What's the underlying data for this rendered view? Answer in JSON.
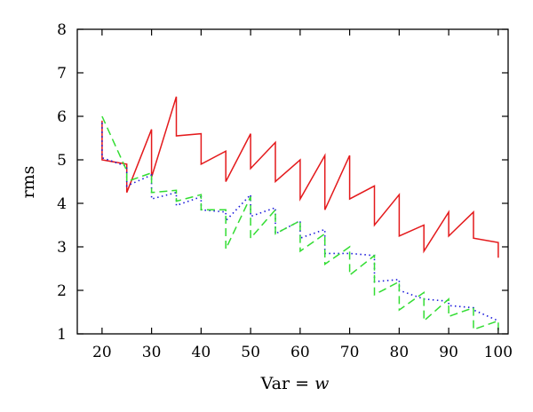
{
  "chart_data": {
    "type": "line",
    "xlabel_prefix": "Var = ",
    "xlabel_var": "w",
    "ylabel": "rms",
    "xlim": [
      15,
      102
    ],
    "ylim": [
      1,
      8
    ],
    "xticks": [
      "20",
      "30",
      "40",
      "50",
      "60",
      "70",
      "80",
      "90",
      "100"
    ],
    "yticks": [
      "1",
      "2",
      "3",
      "4",
      "5",
      "6",
      "7",
      "8"
    ],
    "grid": false,
    "legend": "none",
    "series": [
      {
        "color": "#e41a1c",
        "dash": "solid",
        "points": [
          [
            20,
            5.9
          ],
          [
            20,
            5.0
          ],
          [
            25,
            4.9
          ],
          [
            25,
            4.25
          ],
          [
            30,
            5.7
          ],
          [
            30,
            4.6
          ],
          [
            35,
            6.45
          ],
          [
            35,
            5.55
          ],
          [
            40,
            5.6
          ],
          [
            40,
            4.9
          ],
          [
            45,
            5.2
          ],
          [
            45,
            4.5
          ],
          [
            50,
            5.6
          ],
          [
            50,
            4.8
          ],
          [
            55,
            5.4
          ],
          [
            55,
            4.5
          ],
          [
            60,
            5.0
          ],
          [
            60,
            4.1
          ],
          [
            65,
            5.1
          ],
          [
            65,
            3.85
          ],
          [
            70,
            5.1
          ],
          [
            70,
            4.1
          ],
          [
            75,
            4.4
          ],
          [
            75,
            3.5
          ],
          [
            80,
            4.2
          ],
          [
            80,
            3.25
          ],
          [
            85,
            3.5
          ],
          [
            85,
            2.9
          ],
          [
            90,
            3.8
          ],
          [
            90,
            3.25
          ],
          [
            95,
            3.8
          ],
          [
            95,
            3.2
          ],
          [
            100,
            3.1
          ],
          [
            100,
            2.75
          ]
        ]
      },
      {
        "color": "#1a1adb",
        "dash": "dotted",
        "points": [
          [
            20,
            5.85
          ],
          [
            20,
            5.05
          ],
          [
            25,
            4.85
          ],
          [
            25,
            4.4
          ],
          [
            30,
            4.65
          ],
          [
            30,
            4.1
          ],
          [
            35,
            4.25
          ],
          [
            35,
            3.95
          ],
          [
            40,
            4.15
          ],
          [
            40,
            3.85
          ],
          [
            45,
            3.8
          ],
          [
            45,
            3.6
          ],
          [
            50,
            4.2
          ],
          [
            50,
            3.7
          ],
          [
            55,
            3.9
          ],
          [
            55,
            3.3
          ],
          [
            60,
            3.6
          ],
          [
            60,
            3.2
          ],
          [
            65,
            3.4
          ],
          [
            65,
            2.85
          ],
          [
            70,
            2.85
          ],
          [
            75,
            2.8
          ],
          [
            75,
            2.2
          ],
          [
            80,
            2.25
          ],
          [
            80,
            2.0
          ],
          [
            85,
            1.8
          ],
          [
            90,
            1.75
          ],
          [
            90,
            1.65
          ],
          [
            95,
            1.6
          ],
          [
            95,
            1.55
          ],
          [
            100,
            1.3
          ]
        ]
      },
      {
        "color": "#33dd33",
        "dash": "dashed",
        "points": [
          [
            20,
            6.0
          ],
          [
            25,
            4.75
          ],
          [
            25,
            4.5
          ],
          [
            30,
            4.7
          ],
          [
            30,
            4.25
          ],
          [
            35,
            4.3
          ],
          [
            35,
            4.05
          ],
          [
            40,
            4.2
          ],
          [
            40,
            3.85
          ],
          [
            45,
            3.85
          ],
          [
            45,
            2.95
          ],
          [
            50,
            4.15
          ],
          [
            50,
            3.2
          ],
          [
            55,
            3.85
          ],
          [
            55,
            3.3
          ],
          [
            60,
            3.6
          ],
          [
            60,
            2.9
          ],
          [
            65,
            3.3
          ],
          [
            65,
            2.6
          ],
          [
            70,
            3.0
          ],
          [
            70,
            2.35
          ],
          [
            75,
            2.8
          ],
          [
            75,
            1.9
          ],
          [
            80,
            2.2
          ],
          [
            80,
            1.55
          ],
          [
            85,
            1.95
          ],
          [
            85,
            1.3
          ],
          [
            90,
            1.8
          ],
          [
            90,
            1.4
          ],
          [
            95,
            1.6
          ],
          [
            95,
            1.1
          ],
          [
            100,
            1.3
          ],
          [
            100,
            1.05
          ]
        ]
      }
    ]
  }
}
